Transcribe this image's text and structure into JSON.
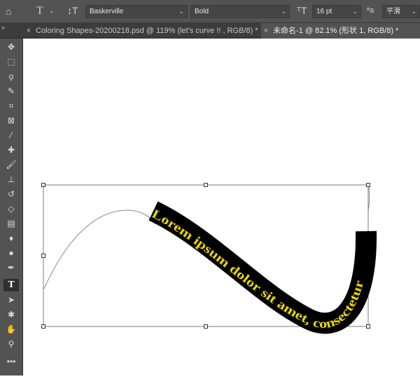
{
  "options_bar": {
    "font_family": "Baskerville",
    "font_style": "Bold",
    "font_size": "16 pt",
    "antialias": "平滑",
    "antialias_icon_text": "ªa"
  },
  "tabs": [
    {
      "label": "Coloring Shapes-20200218.psd @ 119% (let's curve !! , RGB/8) *",
      "active": false
    },
    {
      "label": "未命名-1 @ 82.1% (形状 1, RGB/8) *",
      "active": true
    }
  ],
  "canvas": {
    "path_text": "Lorem ipsum dolor sit amet, consectetur",
    "text_color": "#e8d800",
    "band_color": "#000000",
    "path_line_color": "#8a8a8a"
  },
  "tools": [
    "move-tool",
    "marquee-tool",
    "lasso-tool",
    "quick-select-tool",
    "crop-tool",
    "frame-tool",
    "eyedropper-tool",
    "healing-brush-tool",
    "brush-tool",
    "clone-stamp-tool",
    "history-brush-tool",
    "eraser-tool",
    "gradient-tool",
    "blur-tool",
    "dodge-tool",
    "pen-tool",
    "type-tool",
    "path-select-tool",
    "custom-shape-tool",
    "hand-tool",
    "zoom-tool",
    "more-tools"
  ],
  "colors": {
    "ui_dark": "#535353",
    "tab_bar": "#3c3c3c",
    "accent_text": "#e8d800"
  }
}
